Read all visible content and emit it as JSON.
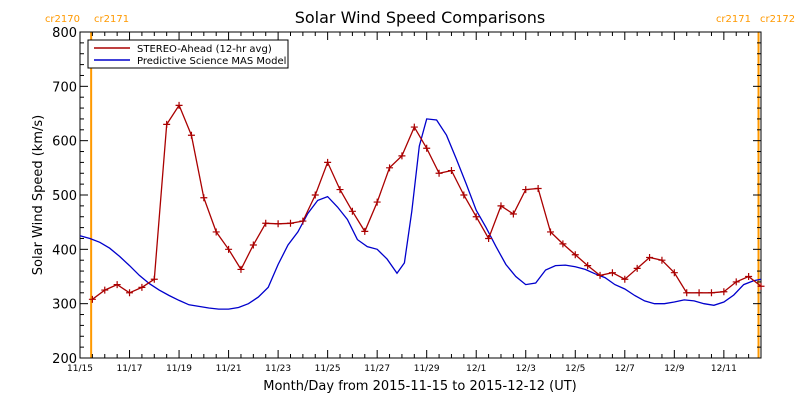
{
  "chart_data": {
    "type": "line",
    "title": "Solar Wind Speed Comparisons",
    "xlabel": "Month/Day from 2015-11-15 to 2015-12-12 (UT)",
    "ylabel": "Solar Wind Speed (km/s)",
    "x_unit": "days since 2015-11-15 00:00 UT",
    "xlim": [
      0,
      27.5
    ],
    "ylim": [
      200,
      800
    ],
    "y_ticks": [
      200,
      300,
      400,
      500,
      600,
      700,
      800
    ],
    "x_ticks": [
      {
        "x": 0,
        "label": "11/15"
      },
      {
        "x": 2,
        "label": "11/17"
      },
      {
        "x": 4,
        "label": "11/19"
      },
      {
        "x": 6,
        "label": "11/21"
      },
      {
        "x": 8,
        "label": "11/23"
      },
      {
        "x": 10,
        "label": "11/25"
      },
      {
        "x": 12,
        "label": "11/27"
      },
      {
        "x": 14,
        "label": "11/29"
      },
      {
        "x": 16,
        "label": "12/1"
      },
      {
        "x": 18,
        "label": "12/3"
      },
      {
        "x": 20,
        "label": "12/5"
      },
      {
        "x": 22,
        "label": "12/7"
      },
      {
        "x": 24,
        "label": "12/9"
      },
      {
        "x": 26,
        "label": "12/11"
      }
    ],
    "legend_position": "top-left",
    "carrington_rotations": [
      {
        "x": 0.45,
        "left_label": "cr2170",
        "right_label": "cr2171",
        "color": "#ff9900"
      },
      {
        "x": 27.4,
        "left_label": "cr2171",
        "right_label": "cr2172",
        "color": "#ff9900"
      }
    ],
    "series": [
      {
        "name": "STEREO-Ahead (12-hr avg)",
        "color": "#aa0000",
        "marker": "plus",
        "x": [
          0.5,
          1.0,
          1.5,
          2.0,
          2.5,
          3.0,
          3.5,
          4.0,
          4.5,
          5.0,
          5.5,
          6.0,
          6.5,
          7.0,
          7.5,
          8.0,
          8.5,
          9.0,
          9.5,
          10.0,
          10.5,
          11.0,
          11.5,
          12.0,
          12.5,
          13.0,
          13.5,
          14.0,
          14.5,
          15.0,
          15.5,
          16.0,
          16.5,
          17.0,
          17.5,
          18.0,
          18.5,
          19.0,
          19.5,
          20.0,
          20.5,
          21.0,
          21.5,
          22.0,
          22.5,
          23.0,
          23.5,
          24.0,
          24.5,
          25.0,
          25.5,
          26.0,
          26.5,
          27.0,
          27.5
        ],
        "values": [
          308,
          325,
          335,
          320,
          330,
          345,
          630,
          665,
          610,
          495,
          432,
          400,
          363,
          408,
          448,
          447,
          448,
          452,
          500,
          560,
          510,
          470,
          433,
          487,
          550,
          572,
          625,
          586,
          540,
          545,
          500,
          460,
          420,
          480,
          465,
          510,
          512,
          432,
          410,
          390,
          370,
          352,
          357,
          345,
          365,
          385,
          380,
          357,
          320,
          320,
          320,
          322,
          340,
          350,
          332
        ]
      },
      {
        "name": "Predictive Science MAS Model",
        "color": "#0000cc",
        "marker": "none",
        "x": [
          0.0,
          0.4,
          0.8,
          1.2,
          1.6,
          2.0,
          2.4,
          2.8,
          3.2,
          3.6,
          4.0,
          4.4,
          4.8,
          5.2,
          5.6,
          6.0,
          6.4,
          6.8,
          7.2,
          7.6,
          8.0,
          8.4,
          8.8,
          9.2,
          9.6,
          10.0,
          10.4,
          10.8,
          11.2,
          11.6,
          12.0,
          12.4,
          12.8,
          13.1,
          13.4,
          13.7,
          14.0,
          14.4,
          14.8,
          15.2,
          15.6,
          16.0,
          16.4,
          16.8,
          17.2,
          17.6,
          18.0,
          18.4,
          18.8,
          19.2,
          19.6,
          20.0,
          20.4,
          20.8,
          21.2,
          21.6,
          22.0,
          22.4,
          22.8,
          23.2,
          23.6,
          24.0,
          24.4,
          24.8,
          25.2,
          25.6,
          26.0,
          26.4,
          26.8,
          27.2,
          27.5
        ],
        "values": [
          425,
          420,
          413,
          402,
          387,
          370,
          352,
          337,
          325,
          315,
          306,
          298,
          295,
          292,
          290,
          290,
          293,
          300,
          312,
          330,
          372,
          408,
          432,
          466,
          490,
          497,
          478,
          455,
          418,
          405,
          400,
          382,
          356,
          375,
          470,
          590,
          640,
          638,
          610,
          566,
          520,
          472,
          440,
          405,
          372,
          350,
          335,
          338,
          362,
          370,
          371,
          368,
          363,
          355,
          348,
          335,
          327,
          315,
          305,
          300,
          300,
          303,
          307,
          305,
          300,
          297,
          303,
          316,
          335,
          342,
          345
        ]
      }
    ]
  },
  "colors": {
    "stereo": "#aa0000",
    "model": "#0000cc",
    "carrington": "#ff9900"
  }
}
